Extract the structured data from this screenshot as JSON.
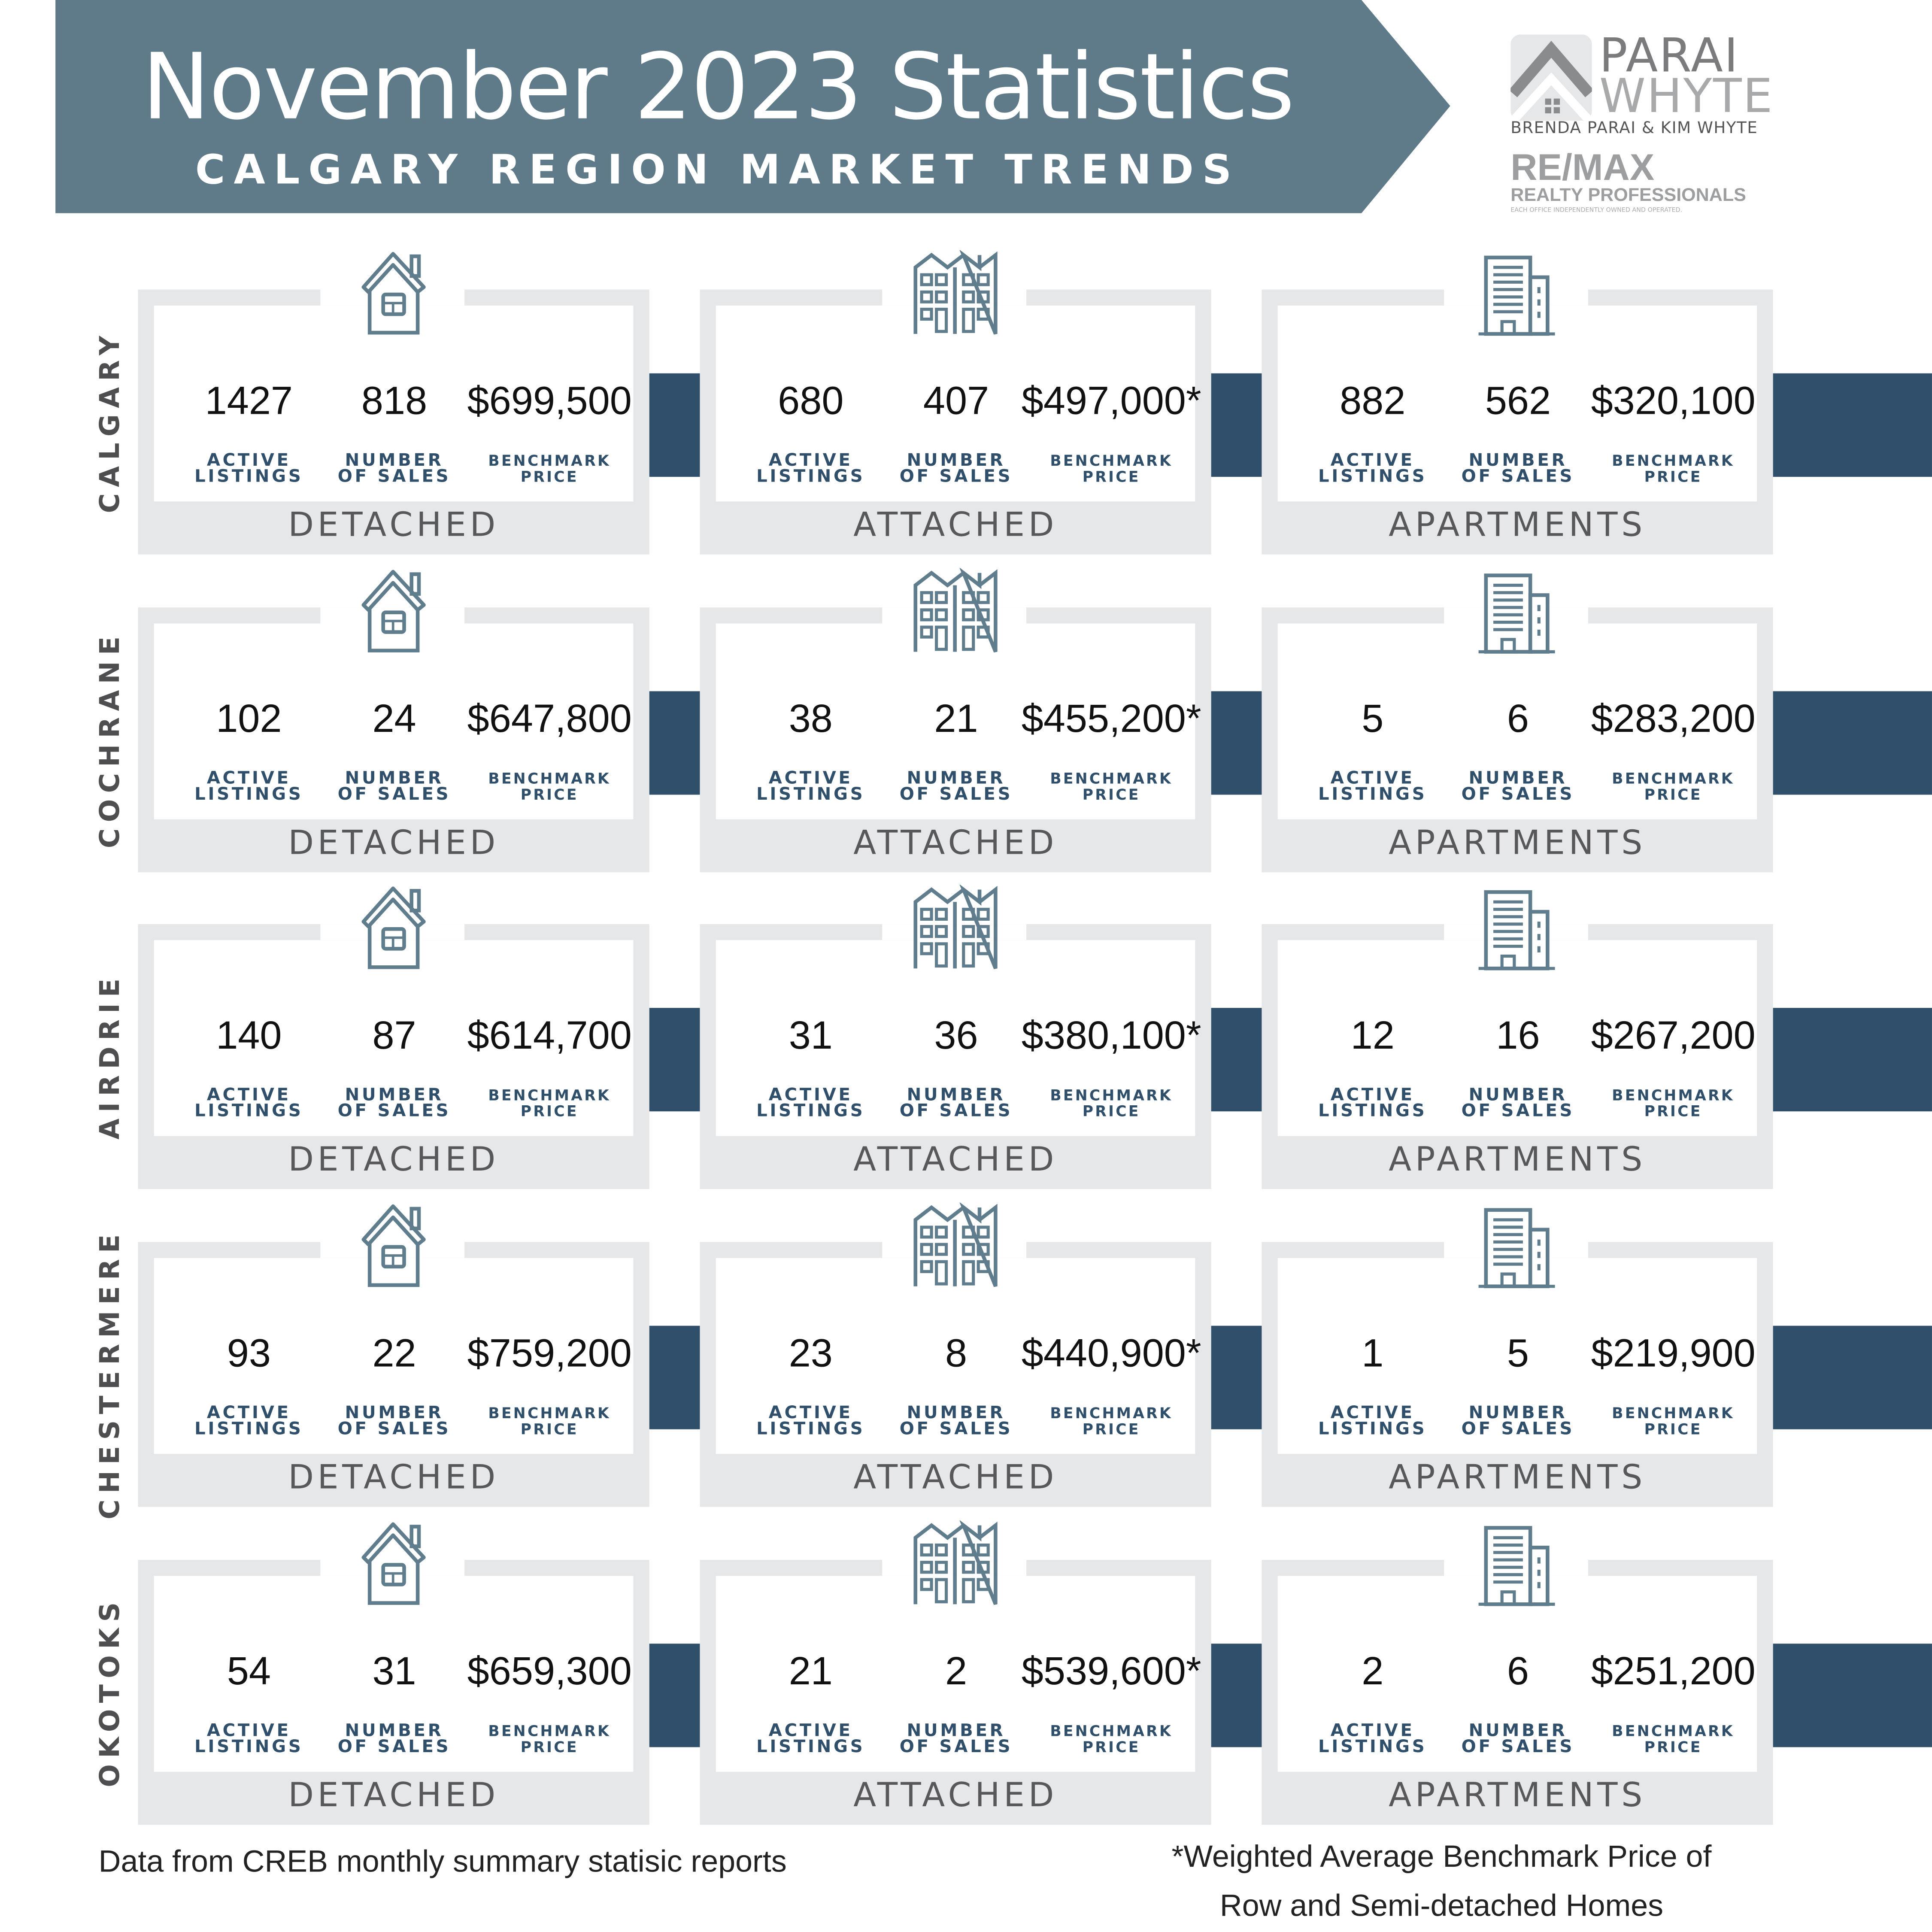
{
  "header": {
    "title": "November 2023 Statistics",
    "subtitle": "CALGARY REGION MARKET TRENDS",
    "banner_color": "#5f7b8a"
  },
  "logo": {
    "line1": "PARAI",
    "line2": "WHYTE",
    "names": "BRENDA PARAI & KIM WHYTE",
    "brand": "RE/MAX",
    "brand_sub": "REALTY PROFESSIONALS",
    "disclaimer": "EACH OFFICE INDEPENDENTLY OWNED AND OPERATED."
  },
  "labels": {
    "active": [
      "ACTIVE",
      "LISTINGS"
    ],
    "sales": [
      "NUMBER",
      "OF SALES"
    ],
    "price": [
      "BENCHMARK",
      "PRICE"
    ]
  },
  "accent_color": "#2f4f6b",
  "regions": [
    {
      "name": "CALGARY",
      "cards": [
        {
          "type": "DETACHED",
          "icon": "house-icon",
          "active": "1427",
          "sales": "818",
          "price": "$699,500"
        },
        {
          "type": "ATTACHED",
          "icon": "townhouse-icon",
          "active": "680",
          "sales": "407",
          "price": "$497,000*"
        },
        {
          "type": "APARTMENTS",
          "icon": "apartment-building-icon",
          "active": "882",
          "sales": "562",
          "price": "$320,100"
        }
      ]
    },
    {
      "name": "COCHRANE",
      "cards": [
        {
          "type": "DETACHED",
          "icon": "house-icon",
          "active": "102",
          "sales": "24",
          "price": "$647,800"
        },
        {
          "type": "ATTACHED",
          "icon": "townhouse-icon",
          "active": "38",
          "sales": "21",
          "price": "$455,200*"
        },
        {
          "type": "APARTMENTS",
          "icon": "apartment-building-icon",
          "active": "5",
          "sales": "6",
          "price": "$283,200"
        }
      ]
    },
    {
      "name": "AIRDRIE",
      "cards": [
        {
          "type": "DETACHED",
          "icon": "house-icon",
          "active": "140",
          "sales": "87",
          "price": "$614,700"
        },
        {
          "type": "ATTACHED",
          "icon": "townhouse-icon",
          "active": "31",
          "sales": "36",
          "price": "$380,100*"
        },
        {
          "type": "APARTMENTS",
          "icon": "apartment-building-icon",
          "active": "12",
          "sales": "16",
          "price": "$267,200"
        }
      ]
    },
    {
      "name": "CHESTERMERE",
      "cards": [
        {
          "type": "DETACHED",
          "icon": "house-icon",
          "active": "93",
          "sales": "22",
          "price": "$759,200"
        },
        {
          "type": "ATTACHED",
          "icon": "townhouse-icon",
          "active": "23",
          "sales": "8",
          "price": "$440,900*"
        },
        {
          "type": "APARTMENTS",
          "icon": "apartment-building-icon",
          "active": "1",
          "sales": "5",
          "price": "$219,900"
        }
      ]
    },
    {
      "name": "OKOTOKS",
      "cards": [
        {
          "type": "DETACHED",
          "icon": "house-icon",
          "active": "54",
          "sales": "31",
          "price": "$659,300"
        },
        {
          "type": "ATTACHED",
          "icon": "townhouse-icon",
          "active": "21",
          "sales": "2",
          "price": "$539,600*"
        },
        {
          "type": "APARTMENTS",
          "icon": "apartment-building-icon",
          "active": "2",
          "sales": "6",
          "price": "$251,200"
        }
      ]
    }
  ],
  "footer": {
    "source": "Data from CREB monthly summary statisic reports",
    "note_line1": "*Weighted Average Benchmark Price of",
    "note_line2": "Row and Semi-detached  Homes"
  }
}
